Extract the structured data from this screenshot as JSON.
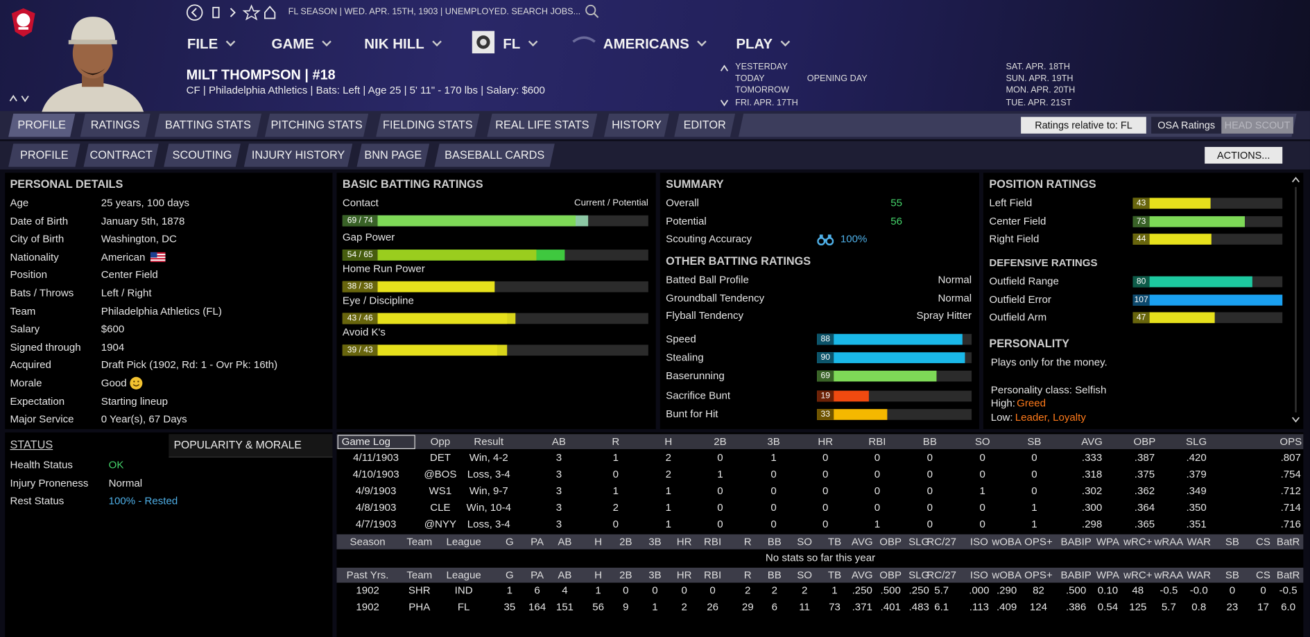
{
  "top_bar": {
    "breadcrumb": "FL SEASON | WED. APR. 15TH, 1903 | UNEMPLOYED. SEARCH JOBS..."
  },
  "menu": [
    "FILE",
    "GAME",
    "NIK HILL",
    "FL",
    "AMERICANS",
    "PLAY"
  ],
  "player": {
    "name": "MILT THOMPSON | #18",
    "info": "CF | Philadelphia Athletics | Bats: Left | Age 25 | 5' 11\" - 170 lbs | Salary: $600"
  },
  "calendar": {
    "left": [
      "YESTERDAY",
      "TODAY",
      "TOMORROW",
      "FRI. APR. 17TH"
    ],
    "event": "OPENING DAY",
    "right": [
      "SAT. APR. 18TH",
      "SUN. APR. 19TH",
      "MON. APR. 20TH",
      "TUE. APR. 21ST"
    ]
  },
  "tabs_main": [
    "PROFILE",
    "RATINGS",
    "BATTING STATS",
    "PITCHING STATS",
    "FIELDING STATS",
    "REAL LIFE STATS",
    "HISTORY",
    "EDITOR"
  ],
  "tabs_sub": [
    "PROFILE",
    "CONTRACT",
    "SCOUTING",
    "INJURY HISTORY",
    "BNN PAGE",
    "BASEBALL CARDS"
  ],
  "controls": {
    "ratings_relative": "Ratings relative to: FL",
    "osa": "OSA Ratings",
    "head_scout": "HEAD SCOUT",
    "actions": "ACTIONS..."
  },
  "personal_details": {
    "title": "PERSONAL DETAILS",
    "rows": [
      [
        "Age",
        "25 years, 100 days"
      ],
      [
        "Date of Birth",
        "January 5th, 1878"
      ],
      [
        "City of Birth",
        "Washington, DC"
      ],
      [
        "Nationality",
        "American"
      ],
      [
        "Position",
        "Center Field"
      ],
      [
        "Bats / Throws",
        "Left / Right"
      ],
      [
        "Team",
        "Philadelphia Athletics (FL)"
      ],
      [
        "Salary",
        "$600"
      ],
      [
        "Signed through",
        "1904"
      ],
      [
        "Acquired",
        "Draft Pick (1902, Rd: 1 - Ovr Pk: 16th)"
      ],
      [
        "Morale",
        "Good"
      ],
      [
        "Expectation",
        "Starting lineup"
      ],
      [
        "Major Service",
        "0 Year(s), 67 Days"
      ]
    ]
  },
  "basic_batting": {
    "title": "BASIC BATTING RATINGS",
    "legend": "Current / Potential",
    "ratings": [
      {
        "name": "Contact",
        "label": "69 / 74",
        "current": 69,
        "potential": 74,
        "color": "#7ed957",
        "potential_color": "#8cc7a4"
      },
      {
        "name": "Gap Power",
        "label": "54 / 65",
        "current": 54,
        "potential": 65,
        "color": "#9acd1e",
        "potential_color": "#3fc83f"
      },
      {
        "name": "Home Run Power",
        "label": "38 / 38",
        "current": 38,
        "potential": 38,
        "color": "#e6e01c",
        "potential_color": "#e6e01c"
      },
      {
        "name": "Eye / Discipline",
        "label": "43 / 46",
        "current": 43,
        "potential": 46,
        "color": "#e6e01c",
        "potential_color": "#d8d41c"
      },
      {
        "name": "Avoid K's",
        "label": "39 / 43",
        "current": 39,
        "potential": 43,
        "color": "#e6e01c",
        "potential_color": "#d8d41c"
      }
    ]
  },
  "summary": {
    "title": "SUMMARY",
    "rows": [
      [
        "Overall",
        "55"
      ],
      [
        "Potential",
        "56"
      ],
      [
        "Scouting Accuracy",
        "100%"
      ]
    ]
  },
  "other_batting": {
    "title": "OTHER BATTING RATINGS",
    "rows": [
      [
        "Batted Ball Profile",
        "Normal"
      ],
      [
        "Groundball Tendency",
        "Normal"
      ],
      [
        "Flyball Tendency",
        "Spray Hitter"
      ]
    ],
    "bars": [
      {
        "name": "Speed",
        "value": 88,
        "color": "#1ab8e8"
      },
      {
        "name": "Stealing",
        "value": 90,
        "color": "#1ab8e8"
      },
      {
        "name": "Baserunning",
        "value": 69,
        "color": "#7ed957"
      },
      {
        "name": "Sacrifice Bunt",
        "value": 19,
        "color": "#f04a10"
      },
      {
        "name": "Bunt for Hit",
        "value": 33,
        "color": "#f5b800"
      }
    ]
  },
  "position_ratings": {
    "title": "POSITION RATINGS",
    "bars": [
      {
        "name": "Left Field",
        "value": 43,
        "color": "#e6e01c"
      },
      {
        "name": "Center Field",
        "value": 73,
        "color": "#7ed957"
      },
      {
        "name": "Right Field",
        "value": 44,
        "color": "#e6e01c"
      }
    ]
  },
  "defensive_ratings": {
    "title": "DEFENSIVE RATINGS",
    "bars": [
      {
        "name": "Outfield Range",
        "value": 80,
        "color": "#1dc9a0"
      },
      {
        "name": "Outfield Error",
        "value": 107,
        "color": "#1aa0f0"
      },
      {
        "name": "Outfield Arm",
        "value": 47,
        "color": "#e6e01c"
      }
    ]
  },
  "personality": {
    "title": "PERSONALITY",
    "text": "Plays only for the money.",
    "class": "Personality class: Selfish",
    "high_label": "High:",
    "high": "Greed",
    "low_label": "Low:",
    "low": "Leader, Loyalty"
  },
  "status": {
    "title": "STATUS",
    "tab": "POPULARITY & MORALE",
    "rows": [
      [
        "Health Status",
        "OK"
      ],
      [
        "Injury Proneness",
        "Normal"
      ],
      [
        "Rest Status",
        "100% - Rested"
      ]
    ]
  },
  "game_log": {
    "headers": [
      "Game Log",
      "Opp",
      "Result",
      "AB",
      "R",
      "H",
      "2B",
      "3B",
      "HR",
      "RBI",
      "BB",
      "SO",
      "SB",
      "AVG",
      "OBP",
      "SLG",
      "OPS"
    ],
    "rows": [
      [
        "4/11/1903",
        "DET",
        "Win, 4-2",
        "3",
        "1",
        "2",
        "0",
        "1",
        "0",
        "0",
        "0",
        "0",
        "0",
        ".333",
        ".387",
        ".420",
        ".807"
      ],
      [
        "4/10/1903",
        "@BOS",
        "Loss, 3-4",
        "3",
        "0",
        "2",
        "1",
        "0",
        "0",
        "0",
        "0",
        "0",
        "0",
        ".318",
        ".375",
        ".379",
        ".754"
      ],
      [
        "4/9/1903",
        "WS1",
        "Win, 9-7",
        "3",
        "1",
        "1",
        "0",
        "0",
        "0",
        "0",
        "0",
        "1",
        "0",
        ".302",
        ".362",
        ".349",
        ".712"
      ],
      [
        "4/8/1903",
        "CLE",
        "Win, 10-4",
        "3",
        "2",
        "1",
        "0",
        "0",
        "0",
        "0",
        "0",
        "0",
        "1",
        ".300",
        ".364",
        ".350",
        ".714"
      ],
      [
        "4/7/1903",
        "@NYY",
        "Loss, 3-4",
        "3",
        "0",
        "1",
        "0",
        "0",
        "0",
        "1",
        "0",
        "0",
        "1",
        ".298",
        ".365",
        ".351",
        ".716"
      ]
    ]
  },
  "season": {
    "headers": [
      "Season",
      "Team",
      "League",
      "G",
      "PA",
      "AB",
      "H",
      "2B",
      "3B",
      "HR",
      "RBI",
      "R",
      "BB",
      "SO",
      "TB",
      "AVG",
      "OBP",
      "SLG",
      "RC/27",
      "ISO",
      "wOBA",
      "OPS+",
      "BABIP",
      "WPA",
      "wRC+",
      "wRAA",
      "WAR",
      "SB",
      "CS",
      "BatR"
    ],
    "empty": "No stats so far this year"
  },
  "past": {
    "headers": [
      "Past Yrs.",
      "Team",
      "League",
      "G",
      "PA",
      "AB",
      "H",
      "2B",
      "3B",
      "HR",
      "RBI",
      "R",
      "BB",
      "SO",
      "TB",
      "AVG",
      "OBP",
      "SLG",
      "RC/27",
      "ISO",
      "wOBA",
      "OPS+",
      "BABIP",
      "WPA",
      "wRC+",
      "wRAA",
      "WAR",
      "SB",
      "CS",
      "BatR"
    ],
    "rows": [
      [
        "1902",
        "SHR",
        "IND",
        "1",
        "6",
        "4",
        "1",
        "0",
        "0",
        "0",
        "0",
        "2",
        "2",
        "2",
        "1",
        ".250",
        ".500",
        ".250",
        "5.7",
        ".000",
        ".290",
        "82",
        ".500",
        "0.10",
        "48",
        "-0.5",
        "-0.0",
        "0",
        "0",
        "-0.5"
      ],
      [
        "1902",
        "PHA",
        "FL",
        "35",
        "164",
        "151",
        "56",
        "9",
        "1",
        "2",
        "26",
        "29",
        "6",
        "11",
        "73",
        ".371",
        ".401",
        ".483",
        "6.1",
        ".113",
        ".409",
        "124",
        ".386",
        "0.54",
        "125",
        "5.7",
        "0.8",
        "23",
        "17",
        "6.0"
      ]
    ]
  }
}
